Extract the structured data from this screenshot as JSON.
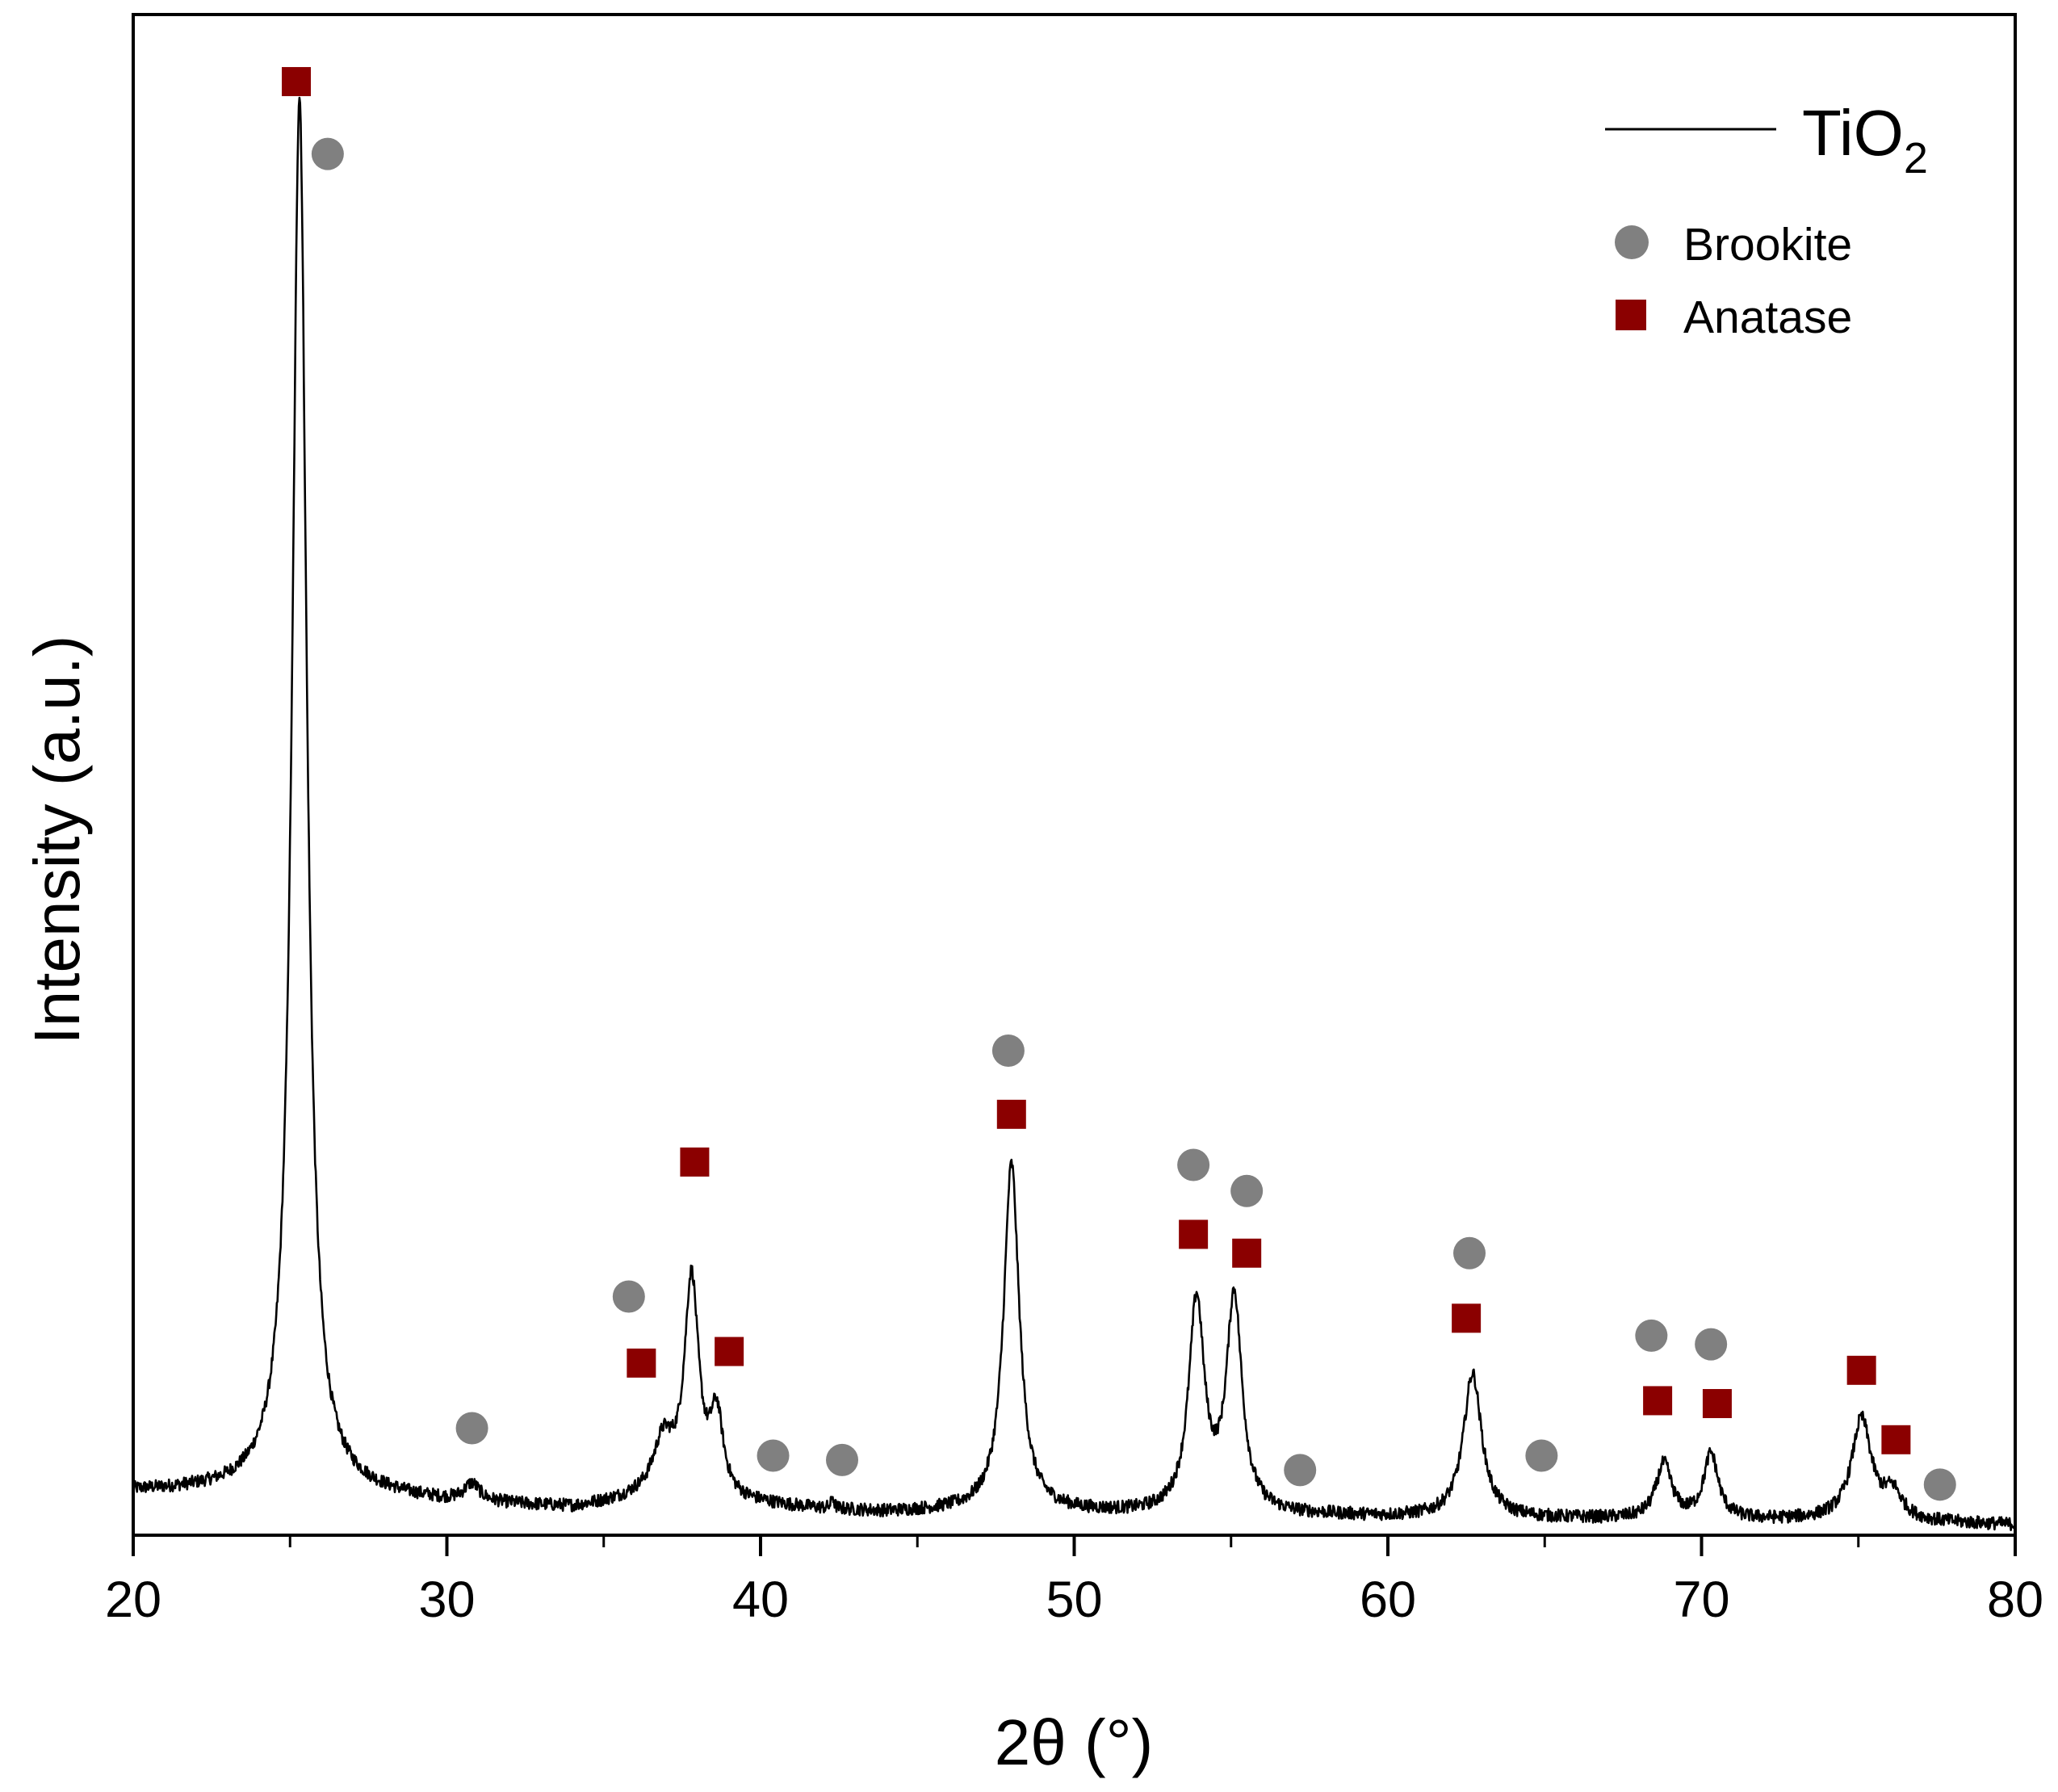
{
  "chart_data": {
    "type": "line",
    "title": "",
    "xlabel": "2θ (°)",
    "ylabel": "Intensity (a.u.)",
    "xlim": [
      20,
      80
    ],
    "ylim": [
      0,
      100
    ],
    "grid": false,
    "x_ticks": [
      "20",
      "30",
      "40",
      "50",
      "60",
      "70",
      "80"
    ],
    "x_tick_values": [
      20,
      30,
      40,
      50,
      60,
      70,
      80
    ],
    "legend": {
      "position": "top-right",
      "series_label": "TiO",
      "series_subscript": "2",
      "markers": [
        {
          "name": "Brookite",
          "symbol": "circle",
          "color": "#808080"
        },
        {
          "name": "Anatase",
          "symbol": "square",
          "color": "#8b0000"
        }
      ]
    },
    "series": [
      {
        "name": "TiO2",
        "color": "#000000",
        "baseline": [
          [
            20,
            3.0
          ],
          [
            22,
            3.0
          ],
          [
            24,
            3.0
          ],
          [
            26,
            3.0
          ],
          [
            28,
            2.6
          ],
          [
            30,
            2.2
          ],
          [
            32,
            2.0
          ],
          [
            34,
            1.8
          ],
          [
            36,
            2.3
          ],
          [
            40,
            2.0
          ],
          [
            42,
            1.7
          ],
          [
            44,
            1.5
          ],
          [
            46,
            1.6
          ],
          [
            48,
            1.6
          ],
          [
            50,
            1.5
          ],
          [
            52,
            1.4
          ],
          [
            56,
            1.3
          ],
          [
            58,
            1.3
          ],
          [
            60,
            1.2
          ],
          [
            64,
            1.1
          ],
          [
            66,
            1.1
          ],
          [
            70,
            1.0
          ],
          [
            74,
            1.0
          ],
          [
            76,
            0.9
          ],
          [
            78,
            0.8
          ],
          [
            80,
            0.7
          ]
        ],
        "peaks": [
          {
            "x": 25.3,
            "height": 96.5,
            "width": 0.28
          },
          {
            "x": 30.8,
            "height": 1.2,
            "width": 0.3
          },
          {
            "x": 36.9,
            "height": 3.8,
            "width": 0.4
          },
          {
            "x": 37.8,
            "height": 15.0,
            "width": 0.28
          },
          {
            "x": 38.6,
            "height": 5.5,
            "width": 0.25
          },
          {
            "x": 42.3,
            "height": 0.8,
            "width": 0.05
          },
          {
            "x": 48.0,
            "height": 24.0,
            "width": 0.3
          },
          {
            "x": 53.9,
            "height": 14.5,
            "width": 0.3
          },
          {
            "x": 55.1,
            "height": 14.8,
            "width": 0.3
          },
          {
            "x": 62.7,
            "height": 10.0,
            "width": 0.35
          },
          {
            "x": 68.8,
            "height": 3.8,
            "width": 0.3
          },
          {
            "x": 70.3,
            "height": 4.5,
            "width": 0.28
          },
          {
            "x": 75.1,
            "height": 7.0,
            "width": 0.38
          },
          {
            "x": 76.1,
            "height": 1.8,
            "width": 0.35
          }
        ],
        "noise": 0.45
      }
    ],
    "markers": {
      "brookite": [
        [
          26.2,
          95.5
        ],
        [
          30.8,
          7.4
        ],
        [
          35.8,
          16.5
        ],
        [
          40.4,
          5.5
        ],
        [
          42.6,
          5.2
        ],
        [
          47.9,
          33.5
        ],
        [
          53.8,
          25.6
        ],
        [
          55.5,
          23.8
        ],
        [
          57.2,
          4.5
        ],
        [
          62.6,
          19.5
        ],
        [
          64.9,
          5.5
        ],
        [
          68.4,
          13.8
        ],
        [
          70.3,
          13.2
        ],
        [
          77.6,
          3.5
        ]
      ],
      "anatase": [
        [
          25.2,
          100.5
        ],
        [
          36.2,
          11.9
        ],
        [
          37.9,
          25.8
        ],
        [
          39.0,
          12.7
        ],
        [
          48.0,
          29.1
        ],
        [
          53.8,
          20.8
        ],
        [
          55.5,
          19.5
        ],
        [
          62.5,
          15.0
        ],
        [
          68.6,
          9.3
        ],
        [
          70.5,
          9.1
        ],
        [
          75.1,
          11.4
        ],
        [
          76.2,
          6.6
        ]
      ]
    }
  }
}
